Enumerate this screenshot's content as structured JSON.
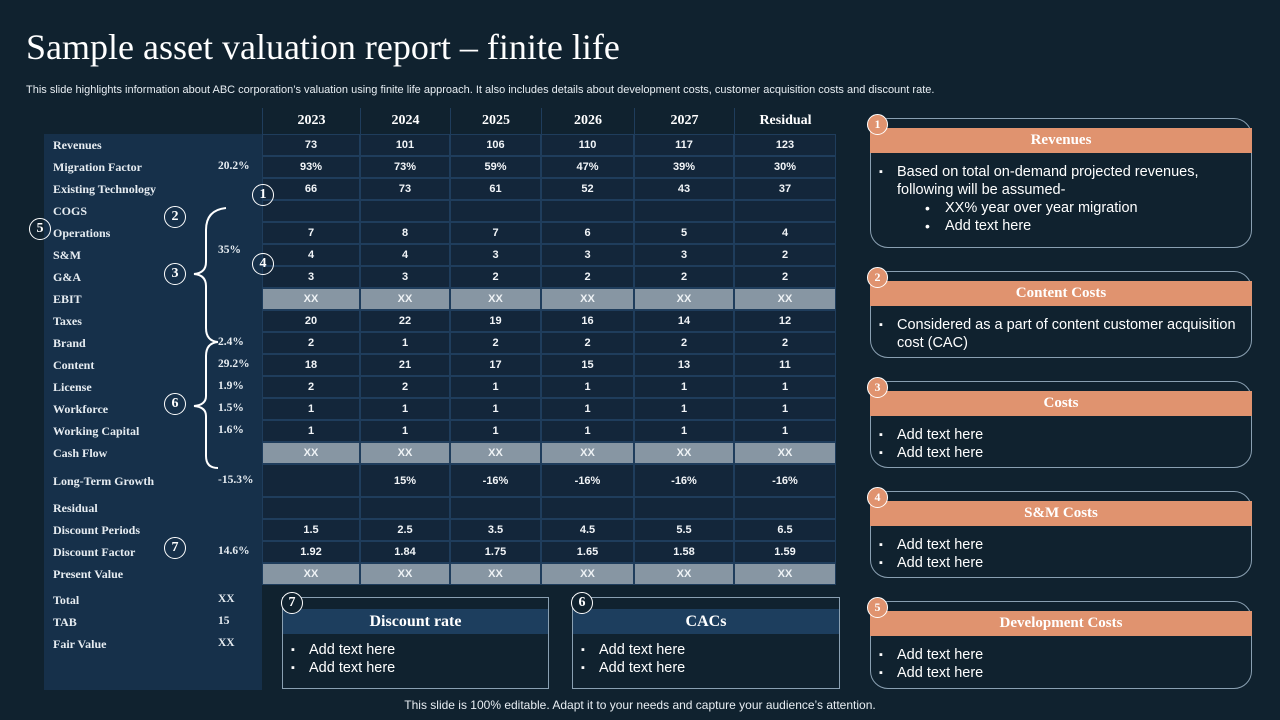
{
  "title": "Sample asset valuation report – finite life",
  "subtitle": "This slide highlights information about ABC corporation’s valuation using finite life approach. It also includes details about development costs, customer acquisition costs and discount rate.",
  "table": {
    "columns": [
      "2023",
      "2024",
      "2025",
      "2026",
      "2027",
      "Residual"
    ],
    "rows": [
      {
        "label": "Revenues",
        "pct": "",
        "values": [
          "73",
          "101",
          "106",
          "110",
          "117",
          "123"
        ]
      },
      {
        "label": "Migration Factor",
        "pct": "20.2%",
        "values": [
          "93%",
          "73%",
          "59%",
          "47%",
          "39%",
          "30%"
        ]
      },
      {
        "label": "Existing Technology",
        "pct": "",
        "values": [
          "66",
          "73",
          "61",
          "52",
          "43",
          "37"
        ]
      },
      {
        "label": "COGS",
        "pct": "",
        "values": [
          "",
          "",
          "",
          "",
          "",
          ""
        ]
      },
      {
        "label": "Operations",
        "pct": "",
        "values": [
          "7",
          "8",
          "7",
          "6",
          "5",
          "4"
        ]
      },
      {
        "label": "S&M",
        "pct": "35%",
        "values": [
          "4",
          "4",
          "3",
          "3",
          "3",
          "2"
        ]
      },
      {
        "label": "G&A",
        "pct": "",
        "values": [
          "3",
          "3",
          "2",
          "2",
          "2",
          "2"
        ]
      },
      {
        "label": "EBIT",
        "pct": "",
        "highlight": true,
        "values": [
          "XX",
          "XX",
          "XX",
          "XX",
          "XX",
          "XX"
        ]
      },
      {
        "label": "Taxes",
        "pct": "",
        "values": [
          "20",
          "22",
          "19",
          "16",
          "14",
          "12"
        ]
      },
      {
        "label": "Brand",
        "pct": "2.4%",
        "values": [
          "2",
          "1",
          "2",
          "2",
          "2",
          "2"
        ]
      },
      {
        "label": "Content",
        "pct": "29.2%",
        "values": [
          "18",
          "21",
          "17",
          "15",
          "13",
          "11"
        ]
      },
      {
        "label": "License",
        "pct": "1.9%",
        "values": [
          "2",
          "2",
          "1",
          "1",
          "1",
          "1"
        ]
      },
      {
        "label": "Workforce",
        "pct": "1.5%",
        "values": [
          "1",
          "1",
          "1",
          "1",
          "1",
          "1"
        ]
      },
      {
        "label": "Working Capital",
        "pct": "1.6%",
        "values": [
          "1",
          "1",
          "1",
          "1",
          "1",
          "1"
        ]
      },
      {
        "label": "Cash Flow",
        "pct": "",
        "highlight": true,
        "values": [
          "XX",
          "XX",
          "XX",
          "XX",
          "XX",
          "XX"
        ]
      },
      {
        "label": "Long-Term Growth",
        "pct": "-15.3%",
        "values": [
          "",
          "15%",
          "-16%",
          "-16%",
          "-16%",
          "-16%"
        ]
      },
      {
        "label": "Residual",
        "pct": "",
        "values": [
          "",
          "",
          "",
          "",
          "",
          ""
        ]
      },
      {
        "label": "Discount Periods",
        "pct": "",
        "values": [
          "1.5",
          "2.5",
          "3.5",
          "4.5",
          "5.5",
          "6.5"
        ]
      },
      {
        "label": "Discount Factor",
        "pct": "14.6%",
        "values": [
          "1.92",
          "1.84",
          "1.75",
          "1.65",
          "1.58",
          "1.59"
        ]
      },
      {
        "label": "Present Value",
        "pct": "",
        "highlight": true,
        "values": [
          "XX",
          "XX",
          "XX",
          "XX",
          "XX",
          "XX"
        ]
      }
    ],
    "summary": [
      {
        "label": "Total",
        "value": "XX"
      },
      {
        "label": "TAB",
        "value": "15"
      },
      {
        "label": "Fair Value",
        "value": "XX"
      }
    ]
  },
  "markers": {
    "m1": "1",
    "m2": "2",
    "m3": "3",
    "m4": "4",
    "m5": "5",
    "m6": "6",
    "m7": "7"
  },
  "cards": [
    {
      "num": "1",
      "title": "Revenues",
      "items": [
        "Based on total on-demand projected revenues, following will be assumed-"
      ],
      "subitems": [
        "XX% year over year migration",
        "Add text here"
      ]
    },
    {
      "num": "2",
      "title": "Content Costs",
      "items": [
        "Considered as a part of content customer acquisition cost (CAC)"
      ]
    },
    {
      "num": "3",
      "title": "Costs",
      "items": [
        "Add text here",
        "Add text here"
      ]
    },
    {
      "num": "4",
      "title": "S&M Costs",
      "items": [
        "Add text here",
        "Add text here"
      ]
    },
    {
      "num": "5",
      "title": "Development Costs",
      "items": [
        "Add text here",
        "Add text here"
      ]
    }
  ],
  "boxes": [
    {
      "num": "7",
      "title": "Discount rate",
      "items": [
        "Add text here",
        "Add text here"
      ]
    },
    {
      "num": "6",
      "title": "CACs",
      "items": [
        "Add text here",
        "Add text here"
      ]
    }
  ],
  "colors": {
    "background": "#10222f",
    "accent": "#e0936f",
    "highlight_row": "#8796a3",
    "panel": "#16304a"
  },
  "footer": "This slide is 100% editable. Adapt it to your needs and capture your audience’s attention."
}
